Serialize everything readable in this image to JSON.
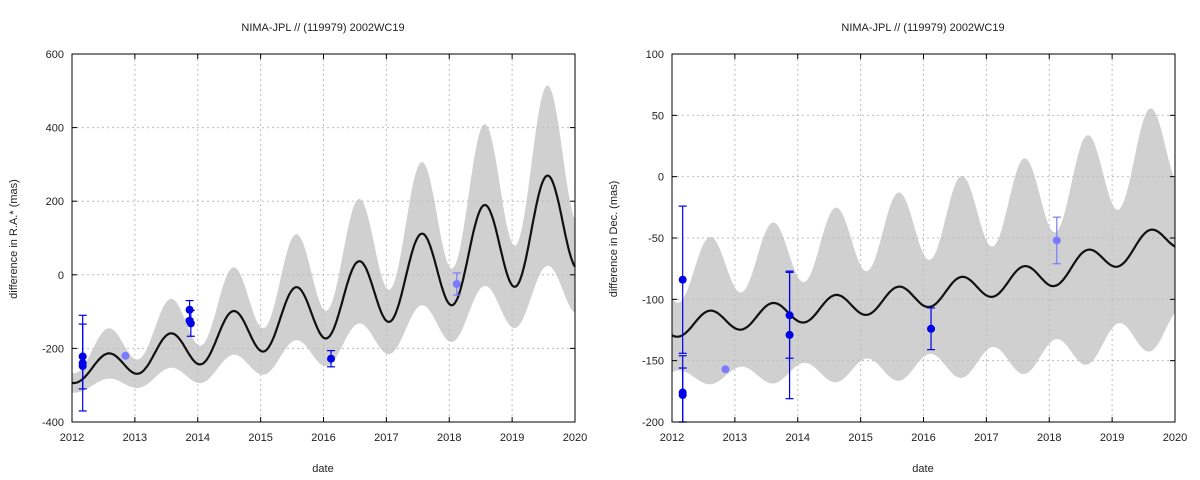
{
  "chart_data": [
    {
      "type": "line",
      "title": "NIMA-JPL // (119979) 2002WC19",
      "xlabel": "date",
      "ylabel": "difference in R.A.* (mas)",
      "xlim": [
        2012,
        2020
      ],
      "ylim": [
        -400,
        600
      ],
      "xticks": [
        2012,
        2013,
        2014,
        2015,
        2016,
        2017,
        2018,
        2019,
        2020
      ],
      "yticks": [
        -400,
        -200,
        0,
        200,
        400,
        600
      ],
      "grid": true,
      "model": {
        "name": "",
        "trend": [
          [
            2012.0,
            -270
          ],
          [
            2014.0,
            -190
          ],
          [
            2016.0,
            -90
          ],
          [
            2018.0,
            30
          ],
          [
            2020.0,
            160
          ]
        ],
        "amp_start": 25,
        "amp_end": 145,
        "period": 1.0,
        "phase": 2012.3
      },
      "band": {
        "halfwidth_start": 40,
        "halfwidth_end": 190
      },
      "observations": [
        {
          "x": 2012.17,
          "y": -222,
          "err": 88,
          "color": "#0000e6"
        },
        {
          "x": 2012.17,
          "y": -240,
          "err": 130,
          "color": "#0000e6"
        },
        {
          "x": 2012.17,
          "y": -248,
          "err": 0,
          "color": "#0000e6"
        },
        {
          "x": 2012.85,
          "y": -220,
          "err": 0,
          "color": "#7b7bff"
        },
        {
          "x": 2013.87,
          "y": -95,
          "err": 25,
          "color": "#0000e6"
        },
        {
          "x": 2013.87,
          "y": -125,
          "err": 0,
          "color": "#0000e6"
        },
        {
          "x": 2013.89,
          "y": -132,
          "err": 35,
          "color": "#0000e6"
        },
        {
          "x": 2016.12,
          "y": -228,
          "err": 22,
          "color": "#0000e6"
        },
        {
          "x": 2018.12,
          "y": -25,
          "err": 30,
          "color": "#7b7bff"
        }
      ]
    },
    {
      "type": "line",
      "title": "NIMA-JPL // (119979) 2002WC19",
      "xlabel": "date",
      "ylabel": "difference in Dec. (mas)",
      "xlim": [
        2012,
        2020
      ],
      "ylim": [
        -200,
        100
      ],
      "xticks": [
        2012,
        2013,
        2014,
        2015,
        2016,
        2017,
        2018,
        2019,
        2020
      ],
      "yticks": [
        -200,
        -150,
        -100,
        -50,
        0,
        50,
        100
      ],
      "grid": true,
      "model": {
        "name": "",
        "trend": [
          [
            2012.0,
            -122
          ],
          [
            2014.0,
            -110
          ],
          [
            2016.0,
            -97
          ],
          [
            2018.0,
            -80
          ],
          [
            2020.0,
            -48
          ]
        ],
        "amp_start": 9,
        "amp_end": 11,
        "period": 1.0,
        "phase": 2012.35
      },
      "band": {
        "halfwidth_start": 42,
        "halfwidth_end": 75
      },
      "observations": [
        {
          "x": 2012.17,
          "y": -84,
          "err": 60,
          "color": "#0000e6"
        },
        {
          "x": 2012.17,
          "y": -176,
          "err": 30,
          "color": "#0000e6"
        },
        {
          "x": 2012.17,
          "y": -178,
          "err": 22,
          "color": "#0000e6"
        },
        {
          "x": 2012.85,
          "y": -157,
          "err": 0,
          "color": "#7b7bff"
        },
        {
          "x": 2013.87,
          "y": -113,
          "err": 35,
          "color": "#0000e6"
        },
        {
          "x": 2013.87,
          "y": -129,
          "err": 52,
          "color": "#0000e6"
        },
        {
          "x": 2016.12,
          "y": -124,
          "err": 17,
          "color": "#0000e6"
        },
        {
          "x": 2018.12,
          "y": -52,
          "err": 19,
          "color": "#7b7bff"
        }
      ]
    }
  ]
}
